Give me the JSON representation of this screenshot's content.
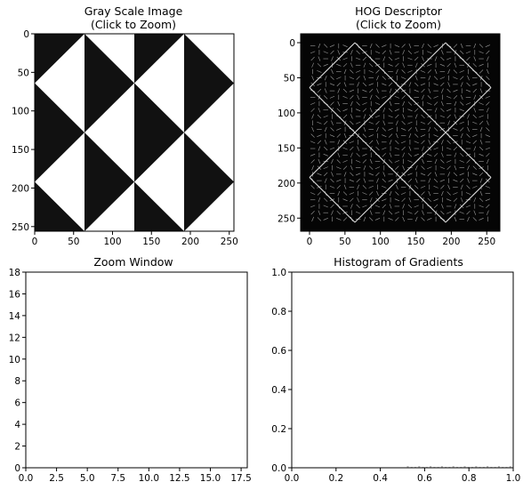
{
  "figure": {
    "panels": {
      "grayscale": {
        "title_line1": "Gray Scale Image",
        "title_line2": "(Click to Zoom)",
        "xticks": [
          "0",
          "50",
          "100",
          "150",
          "200",
          "250"
        ],
        "yticks": [
          "0",
          "50",
          "100",
          "150",
          "200",
          "250"
        ]
      },
      "hog": {
        "title_line1": "HOG Descriptor",
        "title_line2": "(Click to Zoom)",
        "xticks": [
          "0",
          "50",
          "100",
          "150",
          "200",
          "250"
        ],
        "yticks": [
          "0",
          "50",
          "100",
          "150",
          "200",
          "250"
        ]
      },
      "zoom": {
        "title": "Zoom Window",
        "xticks": [
          "0.0",
          "2.5",
          "5.0",
          "7.5",
          "10.0",
          "12.5",
          "15.0",
          "17.5"
        ],
        "yticks": [
          "0",
          "2",
          "4",
          "6",
          "8",
          "10",
          "12",
          "14",
          "16",
          "18"
        ]
      },
      "histogram": {
        "title": "Histogram of Gradients",
        "xticks": [
          "0.0",
          "0.2",
          "0.4",
          "0.6",
          "0.8",
          "1.0"
        ],
        "yticks": [
          "0.0",
          "0.2",
          "0.4",
          "0.6",
          "0.8",
          "1.0"
        ]
      }
    },
    "colors": {
      "dark": "#111111",
      "light": "#ffffff",
      "hog_background": "#050505",
      "hog_lines": "#cfcfcf"
    }
  },
  "chart_data": [
    {
      "type": "heatmap",
      "title": "Gray Scale Image\n(Click to Zoom)",
      "xlim": [
        0,
        256
      ],
      "ylim": [
        256,
        0
      ],
      "description_values": "checkerboard of black and white right triangles, 4x4 grid of 64px squares",
      "xticks": [
        0,
        50,
        100,
        150,
        200,
        250
      ],
      "yticks": [
        0,
        50,
        100,
        150,
        200,
        250
      ]
    },
    {
      "type": "heatmap",
      "title": "HOG Descriptor\n(Click to Zoom)",
      "xlim": [
        0,
        256
      ],
      "ylim": [
        256,
        0
      ],
      "xticks": [
        0,
        50,
        100,
        150,
        200,
        250
      ],
      "yticks": [
        0,
        50,
        100,
        150,
        200,
        250
      ]
    },
    {
      "type": "scatter",
      "title": "Zoom Window",
      "xlim": [
        0,
        18
      ],
      "ylim": [
        0,
        18
      ],
      "xticks": [
        0.0,
        2.5,
        5.0,
        7.5,
        10.0,
        12.5,
        15.0,
        17.5
      ],
      "yticks": [
        0,
        2,
        4,
        6,
        8,
        10,
        12,
        14,
        16,
        18
      ],
      "series": []
    },
    {
      "type": "bar",
      "title": "Histogram of Gradients",
      "xlim": [
        0,
        1
      ],
      "ylim": [
        0,
        1
      ],
      "xticks": [
        0.0,
        0.2,
        0.4,
        0.6,
        0.8,
        1.0
      ],
      "yticks": [
        0.0,
        0.2,
        0.4,
        0.6,
        0.8,
        1.0
      ],
      "series": []
    }
  ]
}
